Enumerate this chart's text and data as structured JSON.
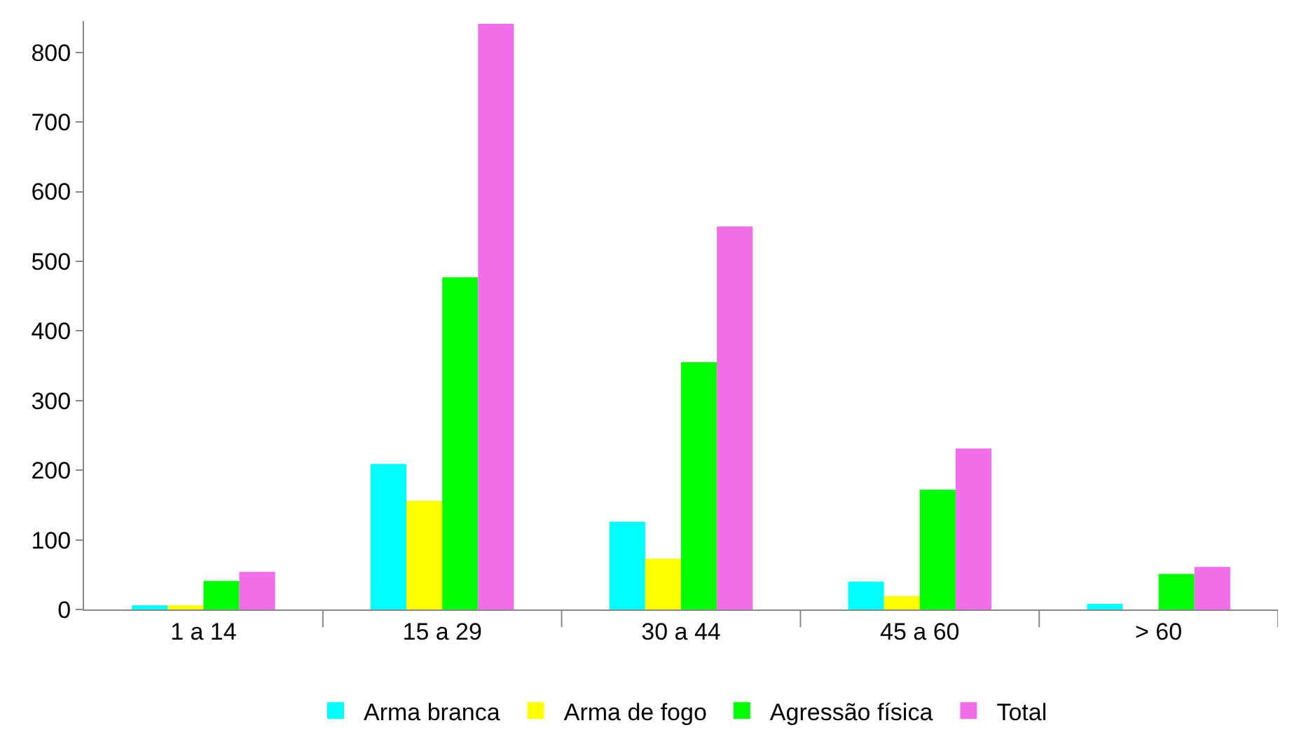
{
  "chart_data": {
    "type": "bar",
    "categories": [
      "1 a 14",
      "15 a 29",
      "30 a 44",
      "45 a 60",
      "> 60"
    ],
    "series": [
      {
        "name": "Arma branca",
        "color": "#00ffff",
        "values": [
          6,
          209,
          126,
          40,
          8
        ]
      },
      {
        "name": "Arma de fogo",
        "color": "#ffff00",
        "values": [
          6,
          156,
          73,
          19,
          0
        ]
      },
      {
        "name": "Agressão física",
        "color": "#00ff00",
        "values": [
          41,
          477,
          355,
          172,
          51
        ]
      },
      {
        "name": "Total",
        "color": "#f26ee8",
        "values": [
          54,
          841,
          550,
          231,
          61
        ]
      }
    ],
    "ylim": [
      0,
      845
    ],
    "yticks": [
      0,
      100,
      200,
      300,
      400,
      500,
      600,
      700,
      800
    ],
    "grid": false,
    "legend": "bottom"
  }
}
